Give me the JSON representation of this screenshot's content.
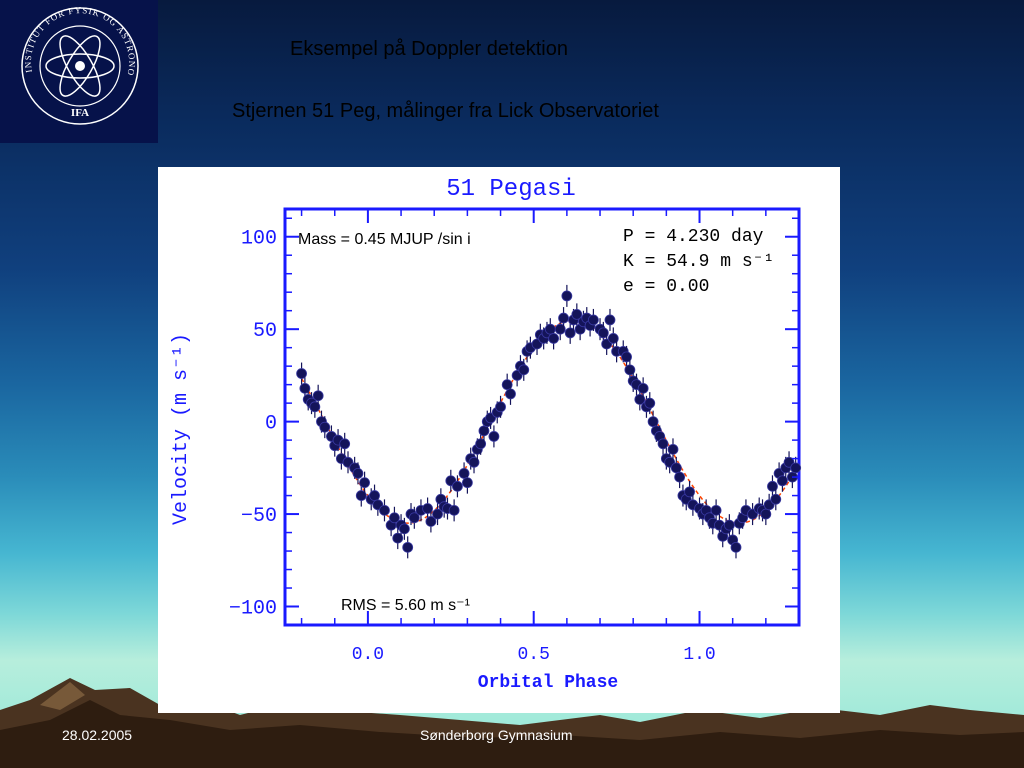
{
  "slide": {
    "title": "Eksempel på Doppler detektion",
    "subtitle": "Stjernen 51 Peg, målinger fra Lick Observatoriet",
    "footer_date": "28.02.2005",
    "footer_center": "Sønderborg Gymnasium",
    "logo_text_ring": "INSTITUT FOR FYSIK OG ASTRONOMI",
    "logo_text_bottom": "IFA"
  },
  "colors": {
    "axis_blue": "#1a1aff",
    "point_navy": "#14145a",
    "fit_orange": "#ff4400",
    "logo_bg": "#06124a"
  },
  "chart_data": {
    "type": "scatter",
    "title": "51 Pegasi",
    "xlabel": "Orbital Phase",
    "ylabel": "Velocity  (m s⁻¹)",
    "xlim": [
      -0.25,
      1.3
    ],
    "ylim": [
      -110,
      115
    ],
    "xticks": [
      0.0,
      0.5,
      1.0
    ],
    "xtick_labels": [
      "0.0",
      "0.5",
      "1.0"
    ],
    "yticks": [
      -100,
      -50,
      0,
      50,
      100
    ],
    "ytick_labels": [
      "−100",
      "−50",
      "0",
      "50",
      "100"
    ],
    "annotations": {
      "mass": "Mass = 0.45 MJUP /sin i",
      "period": "P = 4.230 day",
      "amplitude": "K = 54.9 m s⁻¹",
      "ecc": "e = 0.00",
      "rms": "RMS = 5.60 m s⁻¹"
    },
    "fit": {
      "K": 54.9,
      "phase_of_max": 0.62
    },
    "points": [
      {
        "x": -0.2,
        "y": 26
      },
      {
        "x": -0.19,
        "y": 18
      },
      {
        "x": -0.18,
        "y": 12
      },
      {
        "x": -0.17,
        "y": 10
      },
      {
        "x": -0.16,
        "y": 8
      },
      {
        "x": -0.15,
        "y": 14
      },
      {
        "x": -0.14,
        "y": 0
      },
      {
        "x": -0.13,
        "y": -3
      },
      {
        "x": -0.11,
        "y": -8
      },
      {
        "x": -0.1,
        "y": -13
      },
      {
        "x": -0.09,
        "y": -10
      },
      {
        "x": -0.08,
        "y": -20
      },
      {
        "x": -0.07,
        "y": -12
      },
      {
        "x": -0.06,
        "y": -22
      },
      {
        "x": -0.04,
        "y": -25
      },
      {
        "x": -0.03,
        "y": -28
      },
      {
        "x": -0.02,
        "y": -40
      },
      {
        "x": -0.01,
        "y": -33
      },
      {
        "x": 0.01,
        "y": -42
      },
      {
        "x": 0.02,
        "y": -40
      },
      {
        "x": 0.03,
        "y": -45
      },
      {
        "x": 0.05,
        "y": -48
      },
      {
        "x": 0.07,
        "y": -56
      },
      {
        "x": 0.08,
        "y": -52
      },
      {
        "x": 0.09,
        "y": -63
      },
      {
        "x": 0.1,
        "y": -56
      },
      {
        "x": 0.11,
        "y": -58
      },
      {
        "x": 0.12,
        "y": -68
      },
      {
        "x": 0.13,
        "y": -50
      },
      {
        "x": 0.14,
        "y": -52
      },
      {
        "x": 0.16,
        "y": -48
      },
      {
        "x": 0.18,
        "y": -47
      },
      {
        "x": 0.19,
        "y": -54
      },
      {
        "x": 0.21,
        "y": -50
      },
      {
        "x": 0.22,
        "y": -42
      },
      {
        "x": 0.23,
        "y": -46
      },
      {
        "x": 0.24,
        "y": -47
      },
      {
        "x": 0.25,
        "y": -32
      },
      {
        "x": 0.26,
        "y": -48
      },
      {
        "x": 0.27,
        "y": -35
      },
      {
        "x": 0.29,
        "y": -28
      },
      {
        "x": 0.3,
        "y": -33
      },
      {
        "x": 0.31,
        "y": -20
      },
      {
        "x": 0.32,
        "y": -22
      },
      {
        "x": 0.33,
        "y": -15
      },
      {
        "x": 0.34,
        "y": -12
      },
      {
        "x": 0.35,
        "y": -5
      },
      {
        "x": 0.36,
        "y": 0
      },
      {
        "x": 0.37,
        "y": 2
      },
      {
        "x": 0.38,
        "y": -8
      },
      {
        "x": 0.39,
        "y": 5
      },
      {
        "x": 0.4,
        "y": 8
      },
      {
        "x": 0.42,
        "y": 20
      },
      {
        "x": 0.43,
        "y": 15
      },
      {
        "x": 0.45,
        "y": 25
      },
      {
        "x": 0.46,
        "y": 30
      },
      {
        "x": 0.47,
        "y": 28
      },
      {
        "x": 0.48,
        "y": 38
      },
      {
        "x": 0.49,
        "y": 40
      },
      {
        "x": 0.51,
        "y": 42
      },
      {
        "x": 0.52,
        "y": 47
      },
      {
        "x": 0.53,
        "y": 45
      },
      {
        "x": 0.54,
        "y": 48
      },
      {
        "x": 0.55,
        "y": 50
      },
      {
        "x": 0.56,
        "y": 45
      },
      {
        "x": 0.58,
        "y": 50
      },
      {
        "x": 0.59,
        "y": 56
      },
      {
        "x": 0.6,
        "y": 68
      },
      {
        "x": 0.61,
        "y": 48
      },
      {
        "x": 0.62,
        "y": 55
      },
      {
        "x": 0.63,
        "y": 58
      },
      {
        "x": 0.64,
        "y": 50
      },
      {
        "x": 0.65,
        "y": 54
      },
      {
        "x": 0.66,
        "y": 56
      },
      {
        "x": 0.67,
        "y": 52
      },
      {
        "x": 0.68,
        "y": 55
      },
      {
        "x": 0.7,
        "y": 50
      },
      {
        "x": 0.71,
        "y": 48
      },
      {
        "x": 0.72,
        "y": 42
      },
      {
        "x": 0.73,
        "y": 55
      },
      {
        "x": 0.74,
        "y": 45
      },
      {
        "x": 0.75,
        "y": 38
      },
      {
        "x": 0.77,
        "y": 38
      },
      {
        "x": 0.78,
        "y": 35
      },
      {
        "x": 0.79,
        "y": 28
      },
      {
        "x": 0.8,
        "y": 22
      },
      {
        "x": 0.81,
        "y": 20
      },
      {
        "x": 0.82,
        "y": 12
      },
      {
        "x": 0.83,
        "y": 18
      },
      {
        "x": 0.84,
        "y": 8
      },
      {
        "x": 0.85,
        "y": 10
      },
      {
        "x": 0.86,
        "y": 0
      },
      {
        "x": 0.87,
        "y": -5
      },
      {
        "x": 0.88,
        "y": -8
      },
      {
        "x": 0.89,
        "y": -12
      },
      {
        "x": 0.9,
        "y": -20
      },
      {
        "x": 0.91,
        "y": -22
      },
      {
        "x": 0.92,
        "y": -15
      },
      {
        "x": 0.93,
        "y": -25
      },
      {
        "x": 0.94,
        "y": -30
      },
      {
        "x": 0.95,
        "y": -40
      },
      {
        "x": 0.96,
        "y": -42
      },
      {
        "x": 0.97,
        "y": -38
      },
      {
        "x": 0.98,
        "y": -45
      },
      {
        "x": 1.0,
        "y": -47
      },
      {
        "x": 1.01,
        "y": -50
      },
      {
        "x": 1.02,
        "y": -48
      },
      {
        "x": 1.03,
        "y": -52
      },
      {
        "x": 1.04,
        "y": -55
      },
      {
        "x": 1.05,
        "y": -48
      },
      {
        "x": 1.06,
        "y": -56
      },
      {
        "x": 1.07,
        "y": -62
      },
      {
        "x": 1.08,
        "y": -58
      },
      {
        "x": 1.09,
        "y": -56
      },
      {
        "x": 1.1,
        "y": -64
      },
      {
        "x": 1.11,
        "y": -68
      },
      {
        "x": 1.12,
        "y": -55
      },
      {
        "x": 1.13,
        "y": -52
      },
      {
        "x": 1.14,
        "y": -48
      },
      {
        "x": 1.16,
        "y": -50
      },
      {
        "x": 1.18,
        "y": -47
      },
      {
        "x": 1.19,
        "y": -48
      },
      {
        "x": 1.2,
        "y": -50
      },
      {
        "x": 1.21,
        "y": -45
      },
      {
        "x": 1.22,
        "y": -35
      },
      {
        "x": 1.23,
        "y": -42
      },
      {
        "x": 1.24,
        "y": -28
      },
      {
        "x": 1.25,
        "y": -32
      },
      {
        "x": 1.26,
        "y": -25
      },
      {
        "x": 1.27,
        "y": -22
      },
      {
        "x": 1.28,
        "y": -30
      },
      {
        "x": 1.29,
        "y": -25
      }
    ]
  }
}
